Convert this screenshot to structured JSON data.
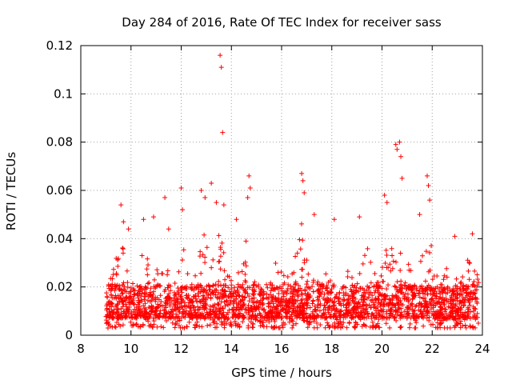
{
  "chart_data": {
    "type": "scatter",
    "title": "Day 284 of 2016, Rate Of TEC Index for receiver sass",
    "xlabel": "GPS time / hours",
    "ylabel": "ROTI / TECUs",
    "xlim": [
      8,
      24
    ],
    "ylim": [
      0,
      0.12
    ],
    "xticks": [
      8,
      10,
      12,
      14,
      16,
      18,
      20,
      22,
      24
    ],
    "xtick_labels": [
      "8",
      "10",
      "12",
      "14",
      "16",
      "18",
      "20",
      "22",
      "24"
    ],
    "yticks": [
      0,
      0.02,
      0.04,
      0.06,
      0.08,
      0.1,
      0.12
    ],
    "ytick_labels": [
      "0",
      "0.02",
      "0.04",
      "0.06",
      "0.08",
      "0.1",
      "0.12"
    ],
    "grid": true,
    "marker": "+",
    "series": [
      {
        "name": "ROTI",
        "color": "#ff0000",
        "data_range_x": [
          9.0,
          23.85
        ],
        "typical_band": [
          0.003,
          0.03
        ],
        "highlights": [
          {
            "x": 9.6,
            "y": 0.054
          },
          {
            "x": 9.7,
            "y": 0.047
          },
          {
            "x": 9.9,
            "y": 0.044
          },
          {
            "x": 10.5,
            "y": 0.048
          },
          {
            "x": 10.9,
            "y": 0.049
          },
          {
            "x": 11.35,
            "y": 0.057
          },
          {
            "x": 11.5,
            "y": 0.044
          },
          {
            "x": 12.0,
            "y": 0.061
          },
          {
            "x": 12.05,
            "y": 0.052
          },
          {
            "x": 12.8,
            "y": 0.06
          },
          {
            "x": 12.95,
            "y": 0.057
          },
          {
            "x": 13.2,
            "y": 0.063
          },
          {
            "x": 13.4,
            "y": 0.055
          },
          {
            "x": 13.55,
            "y": 0.116
          },
          {
            "x": 13.6,
            "y": 0.111
          },
          {
            "x": 13.65,
            "y": 0.084
          },
          {
            "x": 13.7,
            "y": 0.054
          },
          {
            "x": 14.2,
            "y": 0.048
          },
          {
            "x": 14.7,
            "y": 0.066
          },
          {
            "x": 14.75,
            "y": 0.061
          },
          {
            "x": 14.65,
            "y": 0.057
          },
          {
            "x": 16.8,
            "y": 0.067
          },
          {
            "x": 16.85,
            "y": 0.064
          },
          {
            "x": 16.9,
            "y": 0.059
          },
          {
            "x": 17.3,
            "y": 0.05
          },
          {
            "x": 18.1,
            "y": 0.048
          },
          {
            "x": 19.1,
            "y": 0.049
          },
          {
            "x": 20.1,
            "y": 0.058
          },
          {
            "x": 20.2,
            "y": 0.055
          },
          {
            "x": 20.55,
            "y": 0.079
          },
          {
            "x": 20.6,
            "y": 0.077
          },
          {
            "x": 20.7,
            "y": 0.08
          },
          {
            "x": 20.75,
            "y": 0.074
          },
          {
            "x": 20.8,
            "y": 0.065
          },
          {
            "x": 21.5,
            "y": 0.05
          },
          {
            "x": 21.8,
            "y": 0.066
          },
          {
            "x": 21.85,
            "y": 0.062
          },
          {
            "x": 21.9,
            "y": 0.056
          },
          {
            "x": 22.9,
            "y": 0.041
          },
          {
            "x": 23.6,
            "y": 0.042
          }
        ],
        "activity_peaks": [
          {
            "x": 9.6,
            "level": 0.038
          },
          {
            "x": 10.5,
            "level": 0.036
          },
          {
            "x": 11.2,
            "level": 0.034
          },
          {
            "x": 12.0,
            "level": 0.04
          },
          {
            "x": 12.9,
            "level": 0.042
          },
          {
            "x": 13.5,
            "level": 0.046
          },
          {
            "x": 14.6,
            "level": 0.042
          },
          {
            "x": 15.9,
            "level": 0.036
          },
          {
            "x": 16.8,
            "level": 0.048
          },
          {
            "x": 17.8,
            "level": 0.03
          },
          {
            "x": 18.6,
            "level": 0.036
          },
          {
            "x": 19.4,
            "level": 0.036
          },
          {
            "x": 20.3,
            "level": 0.046
          },
          {
            "x": 20.9,
            "level": 0.042
          },
          {
            "x": 21.8,
            "level": 0.044
          },
          {
            "x": 22.6,
            "level": 0.034
          },
          {
            "x": 23.5,
            "level": 0.034
          }
        ],
        "quiet_periods": [
          {
            "x": 15.3,
            "level": 0.02
          },
          {
            "x": 18.3,
            "level": 0.016
          }
        ]
      }
    ]
  }
}
